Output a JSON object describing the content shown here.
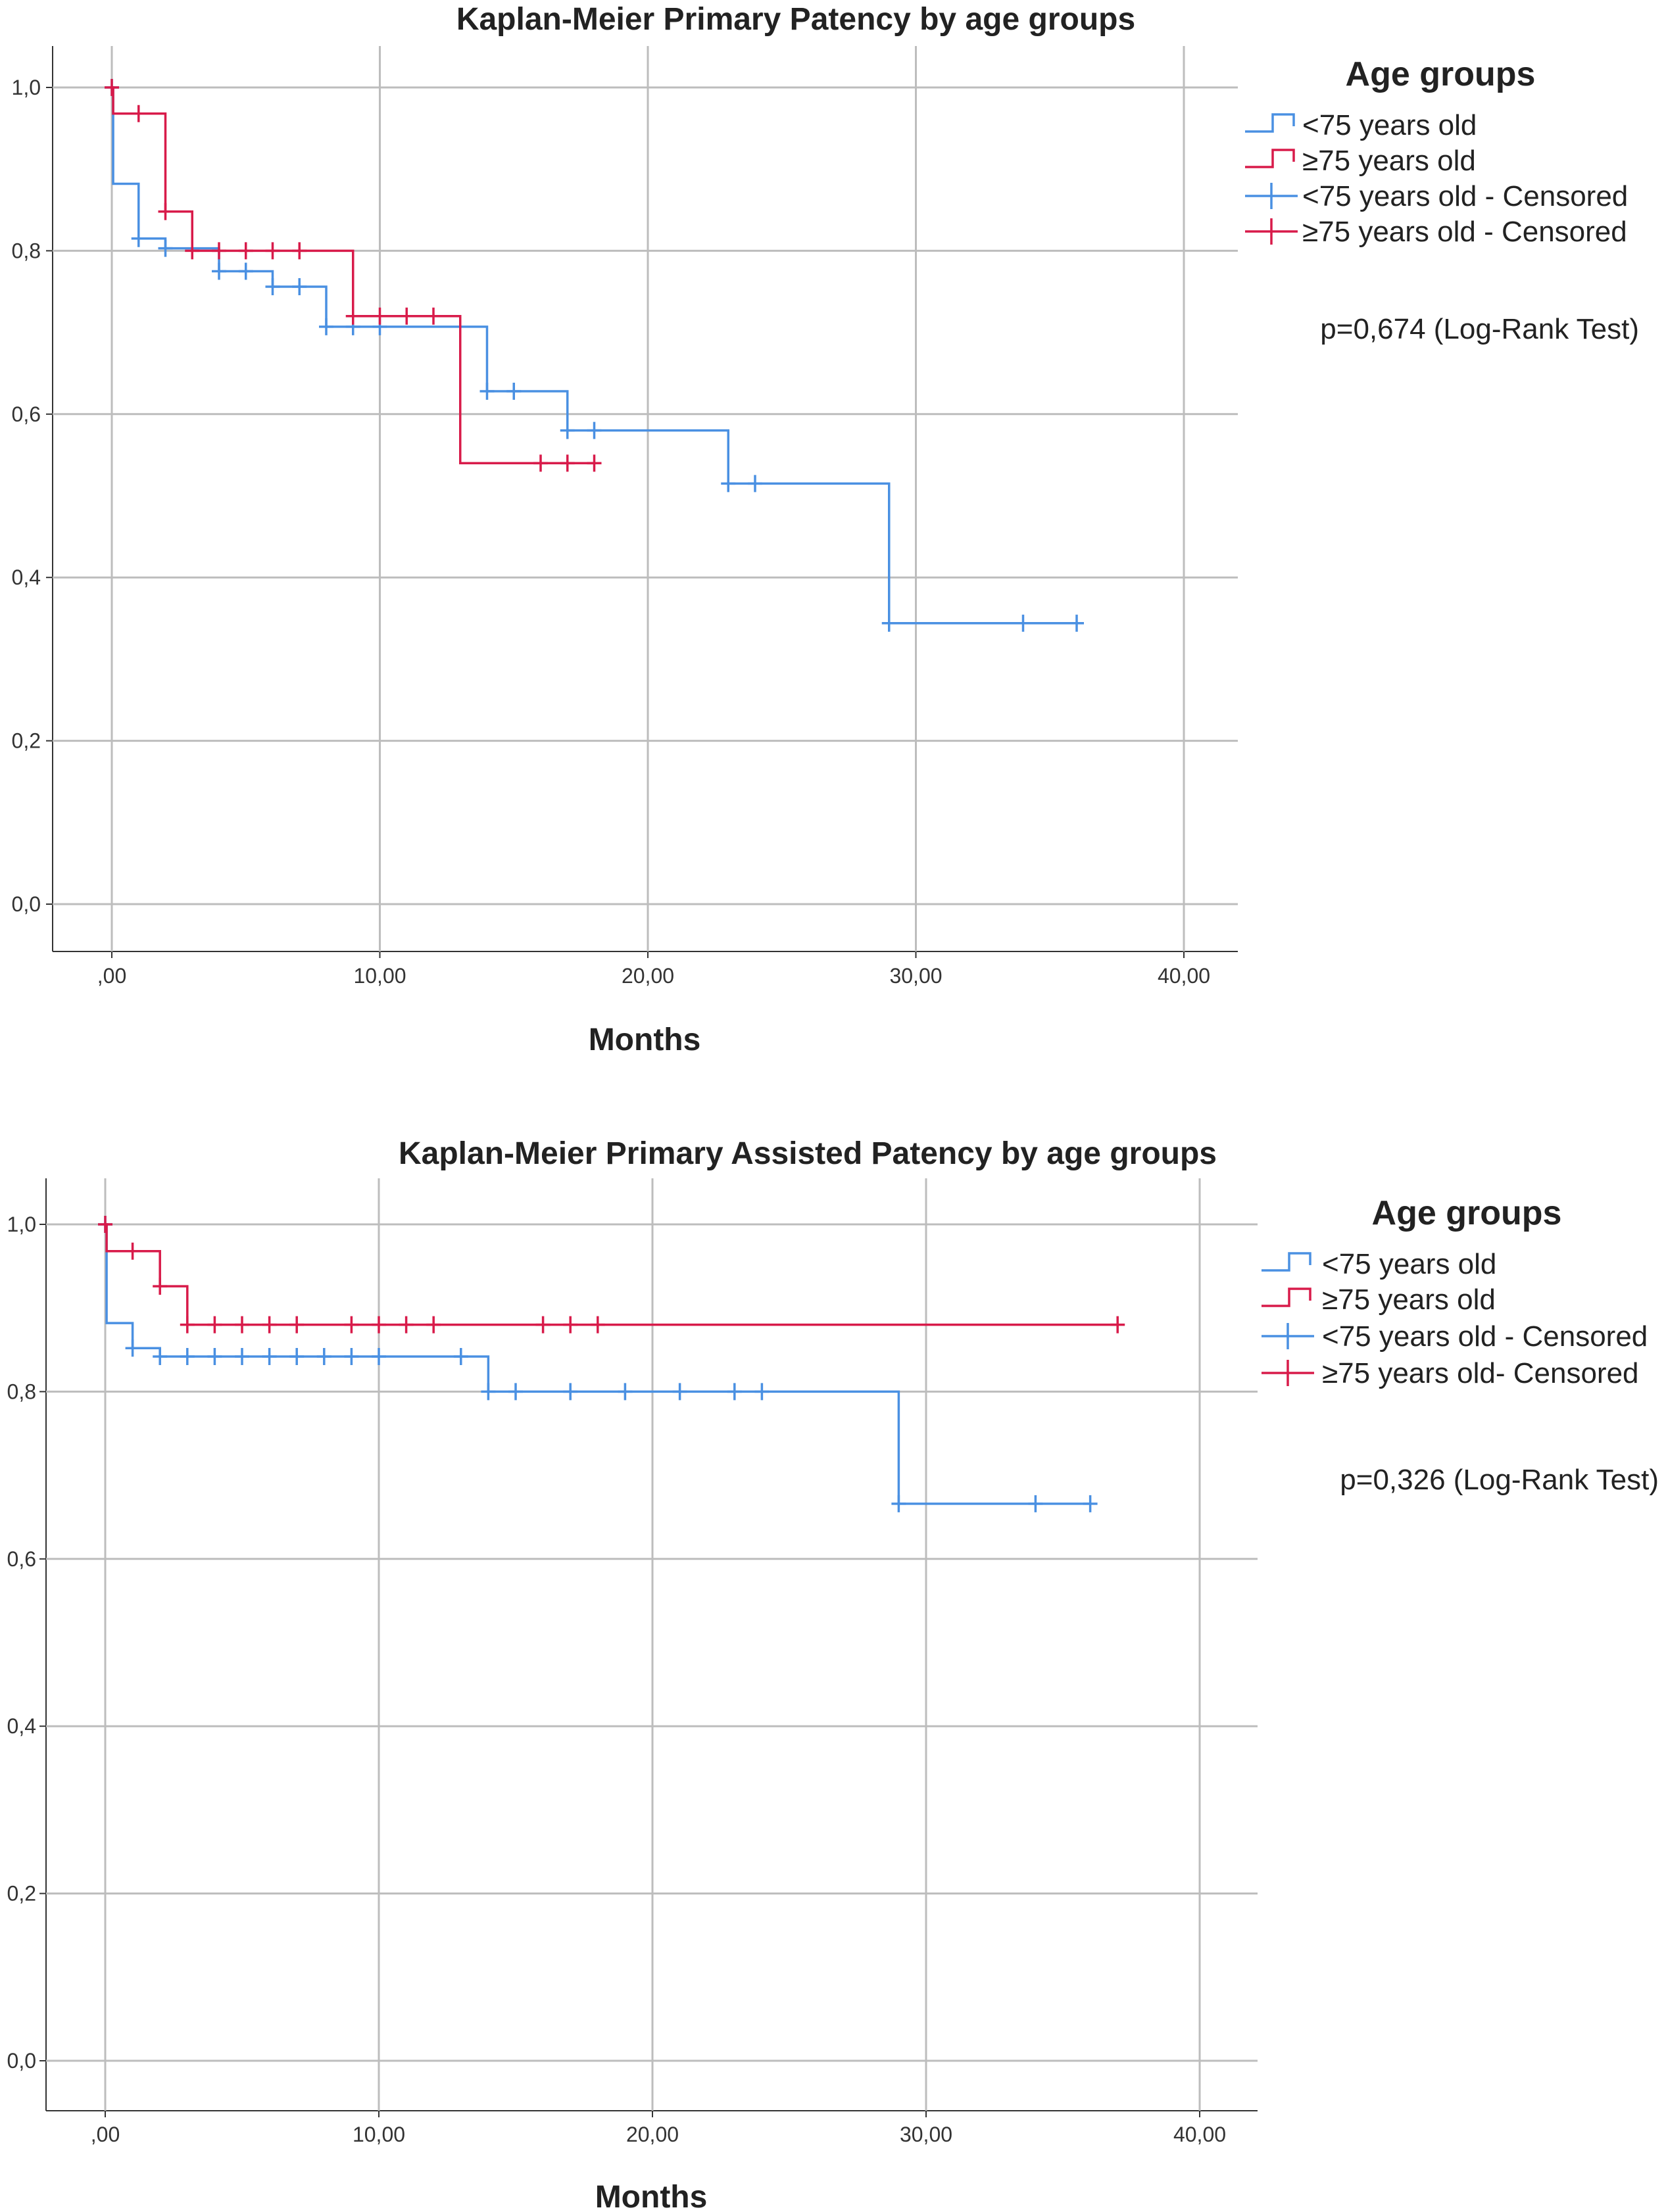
{
  "chart_data": [
    {
      "type": "line",
      "title": "Kaplan-Meier Primary Patency by age groups",
      "xlabel": "Months",
      "ylabel": "",
      "xlim": [
        0,
        40
      ],
      "ylim": [
        0,
        1
      ],
      "xticks": [
        ",00",
        "10,00",
        "20,00",
        "30,00",
        "40,00"
      ],
      "yticks": [
        "0,0",
        "0,2",
        "0,4",
        "0,6",
        "0,8",
        "1,0"
      ],
      "legend_title": "Age groups",
      "legend_labels": [
        "<75 years old",
        "≥75 years old",
        "<75 years old - Censored",
        "≥75 years old - Censored"
      ],
      "annotation": "p=0,674 (Log-Rank Test)",
      "series": [
        {
          "name": "<75 years old",
          "color": "#4a90e2",
          "steps": [
            [
              0,
              1.0
            ],
            [
              0.05,
              0.882
            ],
            [
              1,
              0.815
            ],
            [
              2,
              0.803
            ],
            [
              4,
              0.775
            ],
            [
              6,
              0.756
            ],
            [
              8,
              0.707
            ],
            [
              14,
              0.628
            ],
            [
              17,
              0.58
            ],
            [
              23,
              0.515
            ],
            [
              29,
              0.344
            ]
          ],
          "end": 36,
          "censored": [
            [
              0,
              1.0
            ],
            [
              1,
              0.815
            ],
            [
              2,
              0.803
            ],
            [
              4,
              0.775
            ],
            [
              5,
              0.775
            ],
            [
              6,
              0.756
            ],
            [
              7,
              0.756
            ],
            [
              8,
              0.707
            ],
            [
              9,
              0.707
            ],
            [
              10,
              0.707
            ],
            [
              14,
              0.628
            ],
            [
              15,
              0.628
            ],
            [
              17,
              0.58
            ],
            [
              18,
              0.58
            ],
            [
              23,
              0.515
            ],
            [
              24,
              0.515
            ],
            [
              29,
              0.344
            ],
            [
              34,
              0.344
            ],
            [
              36,
              0.344
            ]
          ]
        },
        {
          "name": "≥75 years old",
          "color": "#d81b4a",
          "steps": [
            [
              0,
              1.0
            ],
            [
              0.05,
              0.968
            ],
            [
              2,
              0.848
            ],
            [
              3,
              0.8
            ],
            [
              9,
              0.72
            ],
            [
              13,
              0.54
            ]
          ],
          "end": 18,
          "censored": [
            [
              0,
              1.0
            ],
            [
              1,
              0.968
            ],
            [
              2,
              0.848
            ],
            [
              3,
              0.8
            ],
            [
              4,
              0.8
            ],
            [
              5,
              0.8
            ],
            [
              6,
              0.8
            ],
            [
              7,
              0.8
            ],
            [
              9,
              0.72
            ],
            [
              10,
              0.72
            ],
            [
              11,
              0.72
            ],
            [
              12,
              0.72
            ],
            [
              16,
              0.54
            ],
            [
              17,
              0.54
            ],
            [
              18,
              0.54
            ]
          ]
        }
      ]
    },
    {
      "type": "line",
      "title": "Kaplan-Meier Primary Assisted Patency by age groups",
      "xlabel": "Months",
      "ylabel": "",
      "xlim": [
        0,
        40
      ],
      "ylim": [
        0,
        1
      ],
      "xticks": [
        ",00",
        "10,00",
        "20,00",
        "30,00",
        "40,00"
      ],
      "yticks": [
        "0,0",
        "0,2",
        "0,4",
        "0,6",
        "0,8",
        "1,0"
      ],
      "legend_title": "Age groups",
      "legend_labels": [
        "<75 years old",
        "≥75 years old",
        "<75 years old - Censored",
        "≥75 years old- Censored"
      ],
      "annotation": "p=0,326 (Log-Rank Test)",
      "series": [
        {
          "name": "<75 years old",
          "color": "#4a90e2",
          "steps": [
            [
              0,
              1.0
            ],
            [
              0.05,
              0.882
            ],
            [
              1,
              0.852
            ],
            [
              2,
              0.842
            ],
            [
              14,
              0.8
            ],
            [
              29,
              0.666
            ]
          ],
          "end": 36,
          "censored": [
            [
              0,
              1.0
            ],
            [
              1,
              0.852
            ],
            [
              2,
              0.842
            ],
            [
              3,
              0.842
            ],
            [
              4,
              0.842
            ],
            [
              5,
              0.842
            ],
            [
              6,
              0.842
            ],
            [
              7,
              0.842
            ],
            [
              8,
              0.842
            ],
            [
              9,
              0.842
            ],
            [
              10,
              0.842
            ],
            [
              13,
              0.842
            ],
            [
              14,
              0.8
            ],
            [
              15,
              0.8
            ],
            [
              17,
              0.8
            ],
            [
              19,
              0.8
            ],
            [
              21,
              0.8
            ],
            [
              23,
              0.8
            ],
            [
              24,
              0.8
            ],
            [
              29,
              0.666
            ],
            [
              34,
              0.666
            ],
            [
              36,
              0.666
            ]
          ]
        },
        {
          "name": "≥75 years old",
          "color": "#d81b4a",
          "steps": [
            [
              0,
              1.0
            ],
            [
              0.05,
              0.968
            ],
            [
              2,
              0.926
            ],
            [
              3,
              0.88
            ]
          ],
          "end": 37,
          "censored": [
            [
              0,
              1.0
            ],
            [
              1,
              0.968
            ],
            [
              2,
              0.926
            ],
            [
              3,
              0.88
            ],
            [
              4,
              0.88
            ],
            [
              5,
              0.88
            ],
            [
              6,
              0.88
            ],
            [
              7,
              0.88
            ],
            [
              9,
              0.88
            ],
            [
              10,
              0.88
            ],
            [
              11,
              0.88
            ],
            [
              12,
              0.88
            ],
            [
              16,
              0.88
            ],
            [
              17,
              0.88
            ],
            [
              18,
              0.88
            ],
            [
              37,
              0.88
            ]
          ]
        }
      ]
    }
  ]
}
